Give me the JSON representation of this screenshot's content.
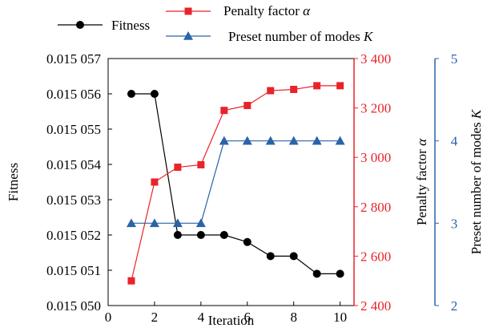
{
  "chart_data": {
    "type": "line",
    "x": [
      1,
      2,
      3,
      4,
      5,
      6,
      7,
      8,
      9,
      10
    ],
    "xlabel": "Iteration",
    "xlim": [
      0,
      10.6
    ],
    "xticks": [
      "0",
      "2",
      "4",
      "6",
      "8",
      "10"
    ],
    "xtick_values": [
      0,
      2,
      4,
      6,
      8,
      10
    ],
    "grid": false,
    "legend_position": "top",
    "axes": {
      "left": {
        "label": "Fitness",
        "ylim": [
          0.01505,
          0.015057
        ],
        "tick_values": [
          0.01505,
          0.015051,
          0.015052,
          0.015053,
          0.015054,
          0.015055,
          0.015056,
          0.015057
        ],
        "tick_labels": [
          "0.015 050",
          "0.015 051",
          "0.015 052",
          "0.015 053",
          "0.015 054",
          "0.015 055",
          "0.015 056",
          "0.015 057"
        ],
        "color": "#000000"
      },
      "right1": {
        "label_text": "Penalty factor ",
        "label_symbol": "α",
        "ylim": [
          2400,
          3400
        ],
        "tick_values": [
          2400,
          2600,
          2800,
          3000,
          3200,
          3400
        ],
        "tick_labels": [
          "2 400",
          "2 600",
          "2 800",
          "3 000",
          "3 200",
          "3 400"
        ],
        "color": "#e8242a"
      },
      "right2": {
        "label_text": "Preset number of modes ",
        "label_symbol": "K",
        "ylim": [
          2,
          5
        ],
        "tick_values": [
          2,
          3,
          4,
          5
        ],
        "tick_labels": [
          "2",
          "3",
          "4",
          "5"
        ],
        "color": "#2a63a8"
      }
    },
    "series": [
      {
        "name": "Fitness",
        "axis": "left",
        "color": "#000000",
        "marker": "circle",
        "values": [
          0.015056,
          0.015056,
          0.015052,
          0.015052,
          0.015052,
          0.0150518,
          0.0150514,
          0.0150514,
          0.0150509,
          0.0150509
        ]
      },
      {
        "name": "Penalty factor α",
        "name_text": "Penalty factor ",
        "name_symbol": "α",
        "axis": "right1",
        "color": "#e8242a",
        "marker": "square",
        "values": [
          2500,
          2900,
          2960,
          2970,
          3190,
          3210,
          3270,
          3275,
          3290,
          3290
        ]
      },
      {
        "name": "Preset number of modes K",
        "name_text": "Preset number of modes ",
        "name_symbol": "K",
        "axis": "right2",
        "color": "#2a63a8",
        "marker": "triangle",
        "values": [
          3,
          3,
          3,
          3,
          4,
          4,
          4,
          4,
          4,
          4
        ]
      }
    ]
  }
}
